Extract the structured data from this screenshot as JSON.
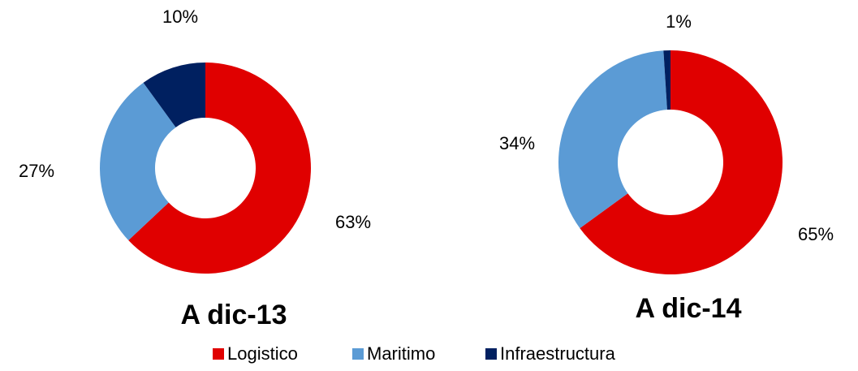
{
  "chart_data": [
    {
      "type": "donut",
      "title": "A dic-13",
      "values": [
        63,
        27,
        10
      ],
      "value_labels": [
        "63%",
        "27%",
        "10%"
      ]
    },
    {
      "type": "donut",
      "title": "A dic-14",
      "values": [
        65,
        34,
        1
      ],
      "value_labels": [
        "65%",
        "34%",
        "1%"
      ]
    }
  ],
  "legend": {
    "categories": [
      "Logistico",
      "Maritimo",
      "Infraestructura"
    ],
    "colors": [
      "#e00000",
      "#5b9bd5",
      "#002060"
    ]
  }
}
